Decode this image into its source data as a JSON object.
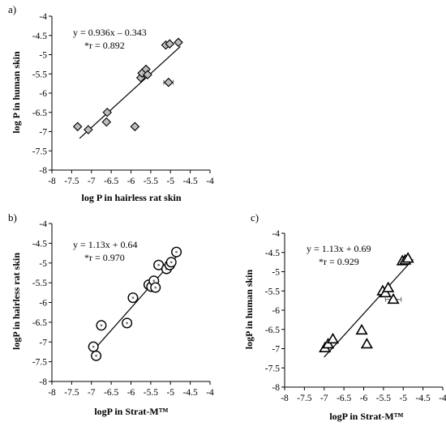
{
  "chart_data": [
    {
      "panel": "a)",
      "type": "scatter",
      "marker": "diamond",
      "xlabel": "log P in hairless rat skin",
      "ylabel": "log P in human skin",
      "xlim": [
        -8,
        -4
      ],
      "ylim": [
        -8,
        -4
      ],
      "ticks": [
        "-8",
        "-7.5",
        "-7",
        "-6.5",
        "-6",
        "-5.5",
        "-5",
        "-4.5",
        "-4"
      ],
      "equation": "y = 0.936x – 0.343",
      "r_text": "*r = 0.892",
      "fit": {
        "slope": 0.936,
        "intercept": -0.343,
        "x_range": [
          -7.3,
          -4.75
        ]
      },
      "points": [
        {
          "x": -7.35,
          "y": -6.87
        },
        {
          "x": -7.08,
          "y": -6.95
        },
        {
          "x": -6.62,
          "y": -6.75
        },
        {
          "x": -6.6,
          "y": -6.5
        },
        {
          "x": -5.9,
          "y": -6.87
        },
        {
          "x": -5.75,
          "y": -5.6
        },
        {
          "x": -5.72,
          "y": -5.48
        },
        {
          "x": -5.62,
          "y": -5.38
        },
        {
          "x": -5.58,
          "y": -5.52
        },
        {
          "x": -5.12,
          "y": -4.75
        },
        {
          "x": -5.05,
          "y": -5.72,
          "xerr": 0.12
        },
        {
          "x": -5.02,
          "y": -4.72
        },
        {
          "x": -4.8,
          "y": -4.68
        }
      ]
    },
    {
      "panel": "b)",
      "type": "scatter",
      "marker": "circle",
      "xlabel": "logP in Strat-M™",
      "ylabel": "logP in hairless rat skin",
      "xlim": [
        -8,
        -4
      ],
      "ylim": [
        -8,
        -4
      ],
      "ticks": [
        "-8",
        "-7.5",
        "-7",
        "-6.5",
        "-6",
        "-5.5",
        "-5",
        "-4.5",
        "-4"
      ],
      "equation": "y = 1.13x + 0.64",
      "r_text": "*r = 0.970",
      "fit": {
        "slope": 1.13,
        "intercept": 0.64,
        "x_range": [
          -6.95,
          -4.8
        ]
      },
      "points": [
        {
          "x": -6.95,
          "y": -7.12
        },
        {
          "x": -6.88,
          "y": -7.35
        },
        {
          "x": -6.75,
          "y": -6.58
        },
        {
          "x": -6.1,
          "y": -6.52
        },
        {
          "x": -5.95,
          "y": -5.88
        },
        {
          "x": -5.55,
          "y": -5.55
        },
        {
          "x": -5.48,
          "y": -5.6
        },
        {
          "x": -5.42,
          "y": -5.45
        },
        {
          "x": -5.38,
          "y": -5.62
        },
        {
          "x": -5.3,
          "y": -5.05,
          "xerr": 0.12
        },
        {
          "x": -5.1,
          "y": -5.15
        },
        {
          "x": -5.02,
          "y": -5.05
        },
        {
          "x": -4.98,
          "y": -4.98
        },
        {
          "x": -4.85,
          "y": -4.72
        }
      ]
    },
    {
      "panel": "c)",
      "type": "scatter",
      "marker": "triangle",
      "xlabel": "logP in Strat-M™",
      "ylabel": "logP in human skin",
      "xlim": [
        -8,
        -4
      ],
      "ylim": [
        -8,
        -4
      ],
      "ticks": [
        "-8",
        "-7.5",
        "-7",
        "-6.5",
        "-6",
        "-5.5",
        "-5",
        "-4.5",
        "-4"
      ],
      "equation": "y = 1.13x + 0.69",
      "r_text": "*r = 0.929",
      "fit": {
        "slope": 1.13,
        "intercept": 0.69,
        "x_range": [
          -7.0,
          -4.75
        ]
      },
      "points": [
        {
          "x": -6.98,
          "y": -6.98
        },
        {
          "x": -6.9,
          "y": -6.88
        },
        {
          "x": -6.78,
          "y": -6.75
        },
        {
          "x": -6.05,
          "y": -6.52
        },
        {
          "x": -5.92,
          "y": -6.88
        },
        {
          "x": -5.52,
          "y": -5.5
        },
        {
          "x": -5.45,
          "y": -5.55
        },
        {
          "x": -5.38,
          "y": -5.42
        },
        {
          "x": -5.25,
          "y": -5.72,
          "xerr": 0.2
        },
        {
          "x": -5.02,
          "y": -4.72
        },
        {
          "x": -4.95,
          "y": -4.7
        },
        {
          "x": -4.88,
          "y": -4.65
        }
      ]
    }
  ]
}
